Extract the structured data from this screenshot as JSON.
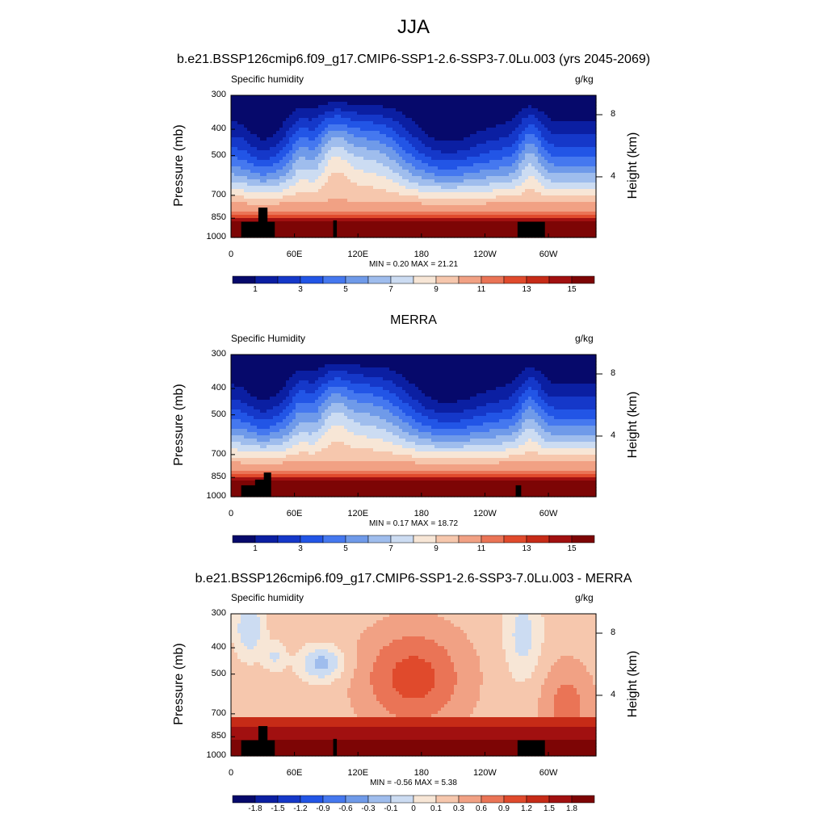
{
  "title": "JJA",
  "colors": {
    "seq": [
      "#06096b",
      "#0b1fa2",
      "#1538c9",
      "#2255e6",
      "#4578ef",
      "#6f9ae9",
      "#9fbded",
      "#ccdcf2",
      "#f7e6d6",
      "#f6c7ad",
      "#f1a184",
      "#ea7456",
      "#e04a2c",
      "#c62b17",
      "#a11010",
      "#7d0505"
    ],
    "div": [
      "#06096b",
      "#0b1fa2",
      "#1538c9",
      "#2255e6",
      "#4578ef",
      "#6f9ae9",
      "#9fbded",
      "#ccdcf2",
      "#f7e6d6",
      "#f6c7ad",
      "#f1a184",
      "#ea7456",
      "#e04a2c",
      "#c62b17",
      "#a11010",
      "#7d0505"
    ]
  },
  "panels": [
    {
      "heading": "b.e21.BSSP126cmip6.f09_g17.CMIP6-SSP1-2.6-SSP3-7.0Lu.003 (yrs 2045-2069)",
      "var_label": "Specific humidity",
      "units": "g/kg",
      "ylabel": "Pressure (mb)",
      "ylabel_right": "Height (km)",
      "yticks": [
        "300",
        "400",
        "500",
        "700",
        "850",
        "1000"
      ],
      "hticks": [
        "8",
        "4"
      ],
      "xticks": [
        "0",
        "60E",
        "120E",
        "180",
        "120W",
        "60W"
      ],
      "min_max": "MIN =   0.20  MAX =  21.21",
      "colorbar_labels": [
        "1",
        "3",
        "5",
        "7",
        "9",
        "11",
        "13",
        "15"
      ],
      "palette": "seq"
    },
    {
      "heading": "MERRA",
      "var_label": "Specific Humidity",
      "units": "g/kg",
      "ylabel": "Pressure (mb)",
      "ylabel_right": "Height (km)",
      "yticks": [
        "300",
        "400",
        "500",
        "700",
        "850",
        "1000"
      ],
      "hticks": [
        "8",
        "4"
      ],
      "xticks": [
        "0",
        "60E",
        "120E",
        "180",
        "120W",
        "60W"
      ],
      "min_max": "MIN =   0.17  MAX =  18.72",
      "colorbar_labels": [
        "1",
        "3",
        "5",
        "7",
        "9",
        "11",
        "13",
        "15"
      ],
      "palette": "seq"
    },
    {
      "heading": "b.e21.BSSP126cmip6.f09_g17.CMIP6-SSP1-2.6-SSP3-7.0Lu.003 - MERRA",
      "var_label": "Specific humidity",
      "units": "g/kg",
      "ylabel": "Pressure (mb)",
      "ylabel_right": "Height (km)",
      "yticks": [
        "300",
        "400",
        "500",
        "700",
        "850",
        "1000"
      ],
      "hticks": [
        "8",
        "4"
      ],
      "xticks": [
        "0",
        "60E",
        "120E",
        "180",
        "120W",
        "60W"
      ],
      "min_max": "MIN =  -0.56  MAX =   5.38",
      "colorbar_labels": [
        "-1.8",
        "-1.5",
        "-1.2",
        "-0.9",
        "-0.6",
        "-0.3",
        "-0.1",
        "0",
        "0.1",
        "0.3",
        "0.6",
        "0.9",
        "1.2",
        "1.5",
        "1.8"
      ],
      "palette": "div"
    }
  ],
  "chart_data": [
    {
      "type": "heatmap",
      "title": "b.e21.BSSP126cmip6.f09_g17.CMIP6-SSP1-2.6-SSP3-7.0Lu.003 (yrs 2045-2069)",
      "subtitle": "Specific humidity",
      "units": "g/kg",
      "xlabel": "",
      "ylabel": "Pressure (mb)",
      "ylabel_right": "Height (km)",
      "x_ticks": [
        "0",
        "60E",
        "120E",
        "180",
        "120W",
        "60W"
      ],
      "y_ticks": [
        300,
        400,
        500,
        700,
        850,
        1000
      ],
      "y_scale": "log-pressure (inverted)",
      "contour_levels": [
        0,
        1,
        2,
        3,
        4,
        5,
        6,
        7,
        8,
        9,
        10,
        11,
        12,
        13,
        14,
        15
      ],
      "min": 0.2,
      "max": 21.21,
      "profile_level_by_pressure": {
        "300": 0.5,
        "400": 1.5,
        "500": 3,
        "700": 7,
        "850": 12,
        "1000": 16
      }
    },
    {
      "type": "heatmap",
      "title": "MERRA",
      "subtitle": "Specific Humidity",
      "units": "g/kg",
      "xlabel": "",
      "ylabel": "Pressure (mb)",
      "ylabel_right": "Height (km)",
      "x_ticks": [
        "0",
        "60E",
        "120E",
        "180",
        "120W",
        "60W"
      ],
      "y_ticks": [
        300,
        400,
        500,
        700,
        850,
        1000
      ],
      "y_scale": "log-pressure (inverted)",
      "contour_levels": [
        0,
        1,
        2,
        3,
        4,
        5,
        6,
        7,
        8,
        9,
        10,
        11,
        12,
        13,
        14,
        15
      ],
      "min": 0.17,
      "max": 18.72,
      "profile_level_by_pressure": {
        "300": 0.3,
        "400": 1.2,
        "500": 2.5,
        "700": 6,
        "850": 11,
        "1000": 15.5
      }
    },
    {
      "type": "heatmap",
      "title": "b.e21.BSSP126cmip6.f09_g17.CMIP6-SSP1-2.6-SSP3-7.0Lu.003 - MERRA",
      "subtitle": "Specific humidity",
      "units": "g/kg",
      "xlabel": "",
      "ylabel": "Pressure (mb)",
      "ylabel_right": "Height (km)",
      "x_ticks": [
        "0",
        "60E",
        "120E",
        "180",
        "120W",
        "60W"
      ],
      "y_ticks": [
        300,
        400,
        500,
        700,
        850,
        1000
      ],
      "y_scale": "log-pressure (inverted)",
      "contour_levels": [
        -1.8,
        -1.5,
        -1.2,
        -0.9,
        -0.6,
        -0.3,
        -0.1,
        0,
        0.1,
        0.3,
        0.6,
        0.9,
        1.2,
        1.5,
        1.8
      ],
      "min": -0.56,
      "max": 5.38
    }
  ]
}
